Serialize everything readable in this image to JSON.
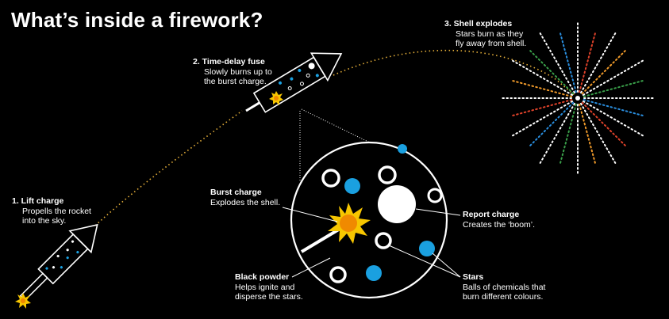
{
  "title": "What’s inside a firework?",
  "steps": [
    {
      "id": "lift",
      "heading": "1. Lift charge",
      "lines": [
        "Propells the rocket",
        "into the sky."
      ]
    },
    {
      "id": "fuse",
      "heading": "2. Time-delay fuse",
      "lines": [
        "Slowly burns up to",
        "the burst charge."
      ]
    },
    {
      "id": "shell",
      "heading": "3. Shell explodes",
      "lines": [
        "Stars burn as they",
        "fly away from shell."
      ]
    }
  ],
  "parts": [
    {
      "id": "burst",
      "heading": "Burst charge",
      "lines": [
        "Explodes the shell."
      ]
    },
    {
      "id": "report",
      "heading": "Report charge",
      "lines": [
        "Creates the ‘boom’."
      ]
    },
    {
      "id": "powder",
      "heading": "Black powder",
      "lines": [
        "Helps ignite and",
        "disperse the stars."
      ]
    },
    {
      "id": "stars",
      "heading": "Stars",
      "lines": [
        "Balls of chemicals that",
        "burn different colours."
      ]
    }
  ],
  "colors": {
    "background": "#000000",
    "text": "#ffffff",
    "spark_yellow": "#f7c600",
    "spark_orange": "#f08a00",
    "trajectory": "#e8b13a",
    "star_blue": "#1aa0e0",
    "burst_white": "#ffffff",
    "burst_blue": "#2a8fe0",
    "burst_red": "#e0422a",
    "burst_orange": "#f09a2a",
    "burst_green": "#3aa04a"
  }
}
